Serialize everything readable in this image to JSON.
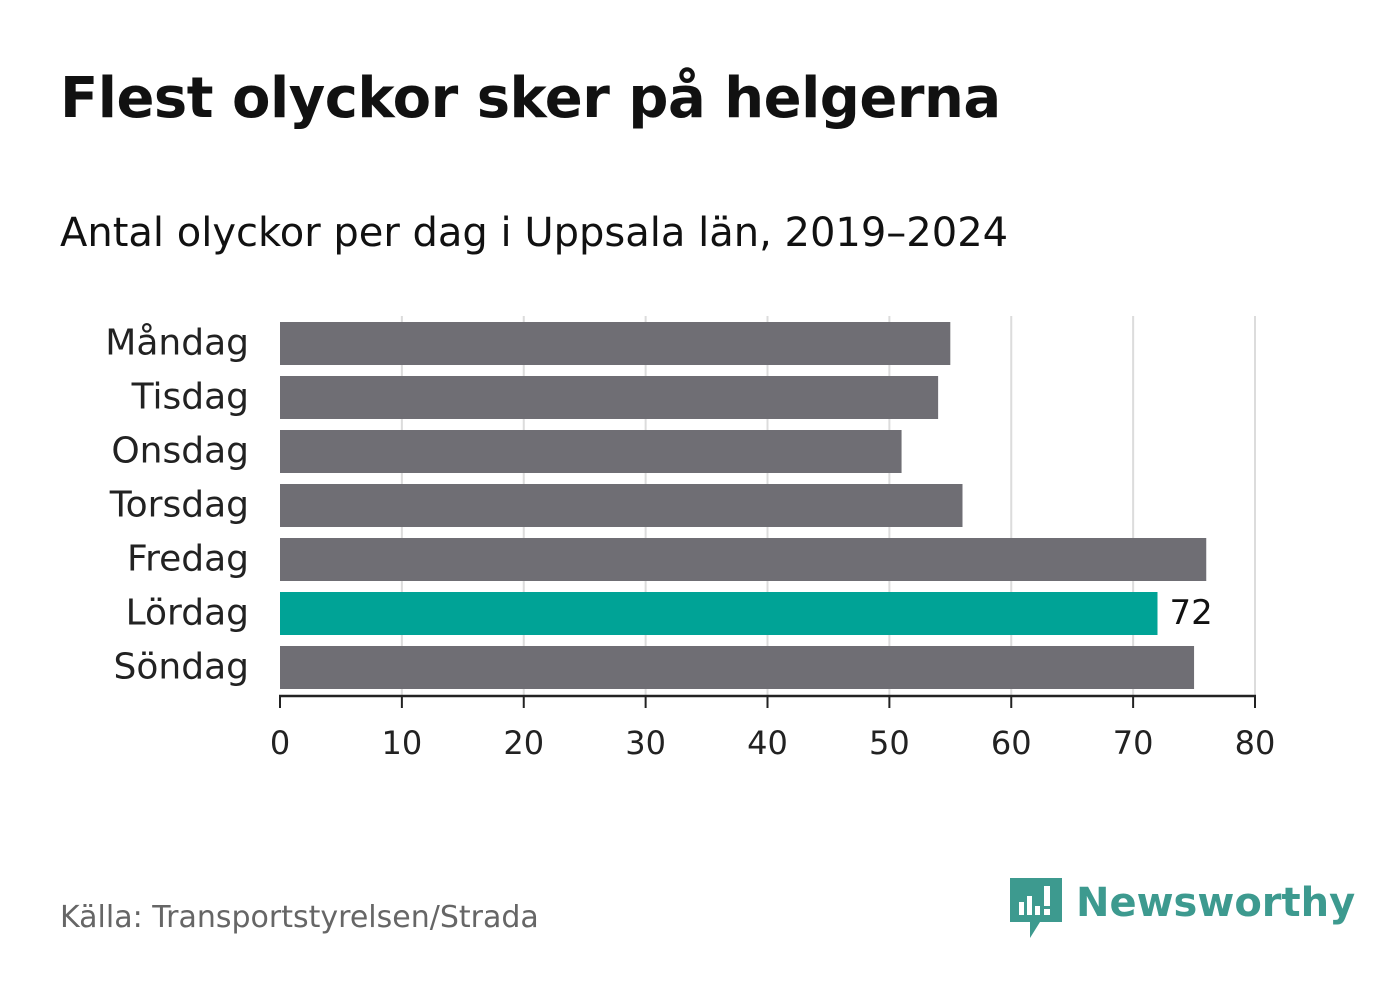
{
  "header": {
    "title": "Flest olyckor sker på helgerna",
    "subtitle": "Antal olyckor per dag i Uppsala län, 2019–2024"
  },
  "chart_data": {
    "type": "bar",
    "orientation": "horizontal",
    "categories": [
      "Måndag",
      "Tisdag",
      "Onsdag",
      "Torsdag",
      "Fredag",
      "Lördag",
      "Söndag"
    ],
    "values": [
      55,
      54,
      51,
      56,
      76,
      72,
      75
    ],
    "xlim": [
      0,
      80
    ],
    "xticks": [
      0,
      10,
      20,
      30,
      40,
      50,
      60,
      70,
      80
    ],
    "grid": "vertical",
    "highlight": {
      "category": "Lördag",
      "label": "72"
    },
    "colors": {
      "default": "#6f6e74",
      "highlight": "#00a396",
      "grid": "#dcdcdc",
      "axis": "#222222"
    }
  },
  "footer": {
    "source": "Källa: Transportstyrelsen/Strada",
    "brand": "Newsworthy",
    "brand_icon": "newsworthy-logo-icon",
    "brand_color": "#3d9a8f"
  }
}
